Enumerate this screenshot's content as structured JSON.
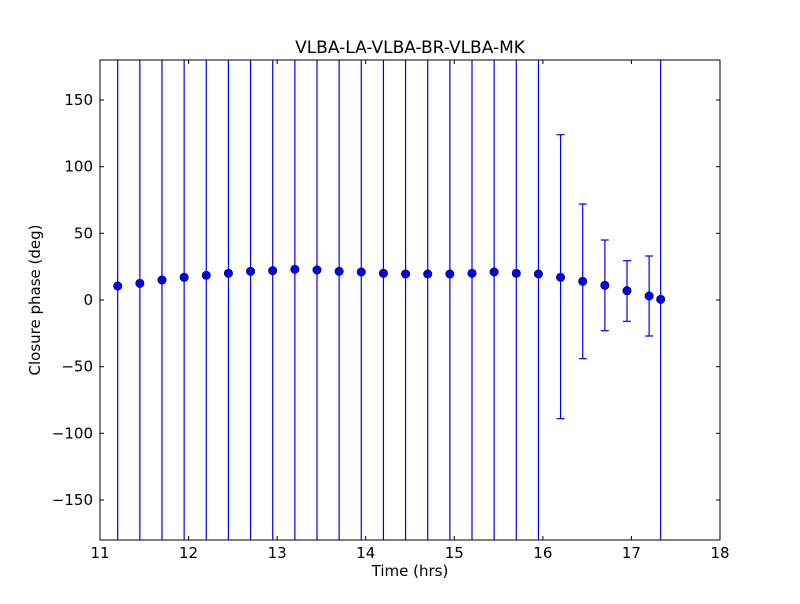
{
  "chart_data": {
    "type": "scatter",
    "title": "VLBA-LA-VLBA-BR-VLBA-MK",
    "xlabel": "Time (hrs)",
    "ylabel": "Closure phase (deg)",
    "xlim": [
      11,
      18
    ],
    "ylim": [
      -180,
      180
    ],
    "xticks": [
      11,
      12,
      13,
      14,
      15,
      16,
      17,
      18
    ],
    "xtick_labels": [
      "11",
      "12",
      "13",
      "14",
      "15",
      "16",
      "17",
      "18"
    ],
    "yticks": [
      -150,
      -100,
      -50,
      0,
      50,
      100,
      150
    ],
    "ytick_labels": [
      "−150",
      "−100",
      "−50",
      "0",
      "50",
      "100",
      "150"
    ],
    "grid": false,
    "legend": "none",
    "marker_color": "#0000ff",
    "errorbar_color": "#0000ff",
    "series": [
      {
        "x": [
          11.2,
          11.45,
          11.7,
          11.95,
          12.2,
          12.45,
          12.7,
          12.95,
          13.2,
          13.45,
          13.7,
          13.95,
          14.2,
          14.45,
          14.7,
          14.95,
          15.2,
          15.45,
          15.7,
          15.95,
          16.2,
          16.45,
          16.7,
          16.95,
          17.2,
          17.33
        ],
        "y": [
          10.5,
          12.5,
          15,
          17,
          18.5,
          20,
          21.5,
          22,
          23,
          22.5,
          21.5,
          21,
          20,
          19.5,
          19.5,
          19.5,
          20,
          21,
          20,
          19.5,
          17,
          14,
          11,
          7,
          3,
          0.5
        ],
        "err_low": [
          -180,
          -180,
          -180,
          -180,
          -180,
          -180,
          -180,
          -180,
          -180,
          -180,
          -180,
          -180,
          -180,
          -180,
          -180,
          -180,
          -180,
          -180,
          -180,
          -180,
          -89,
          -44,
          -23,
          -16,
          -27,
          -180
        ],
        "err_high": [
          180,
          180,
          180,
          180,
          180,
          180,
          180,
          180,
          180,
          180,
          180,
          180,
          180,
          180,
          180,
          180,
          180,
          180,
          180,
          180,
          124,
          72,
          45,
          29.5,
          33,
          180
        ]
      }
    ]
  }
}
